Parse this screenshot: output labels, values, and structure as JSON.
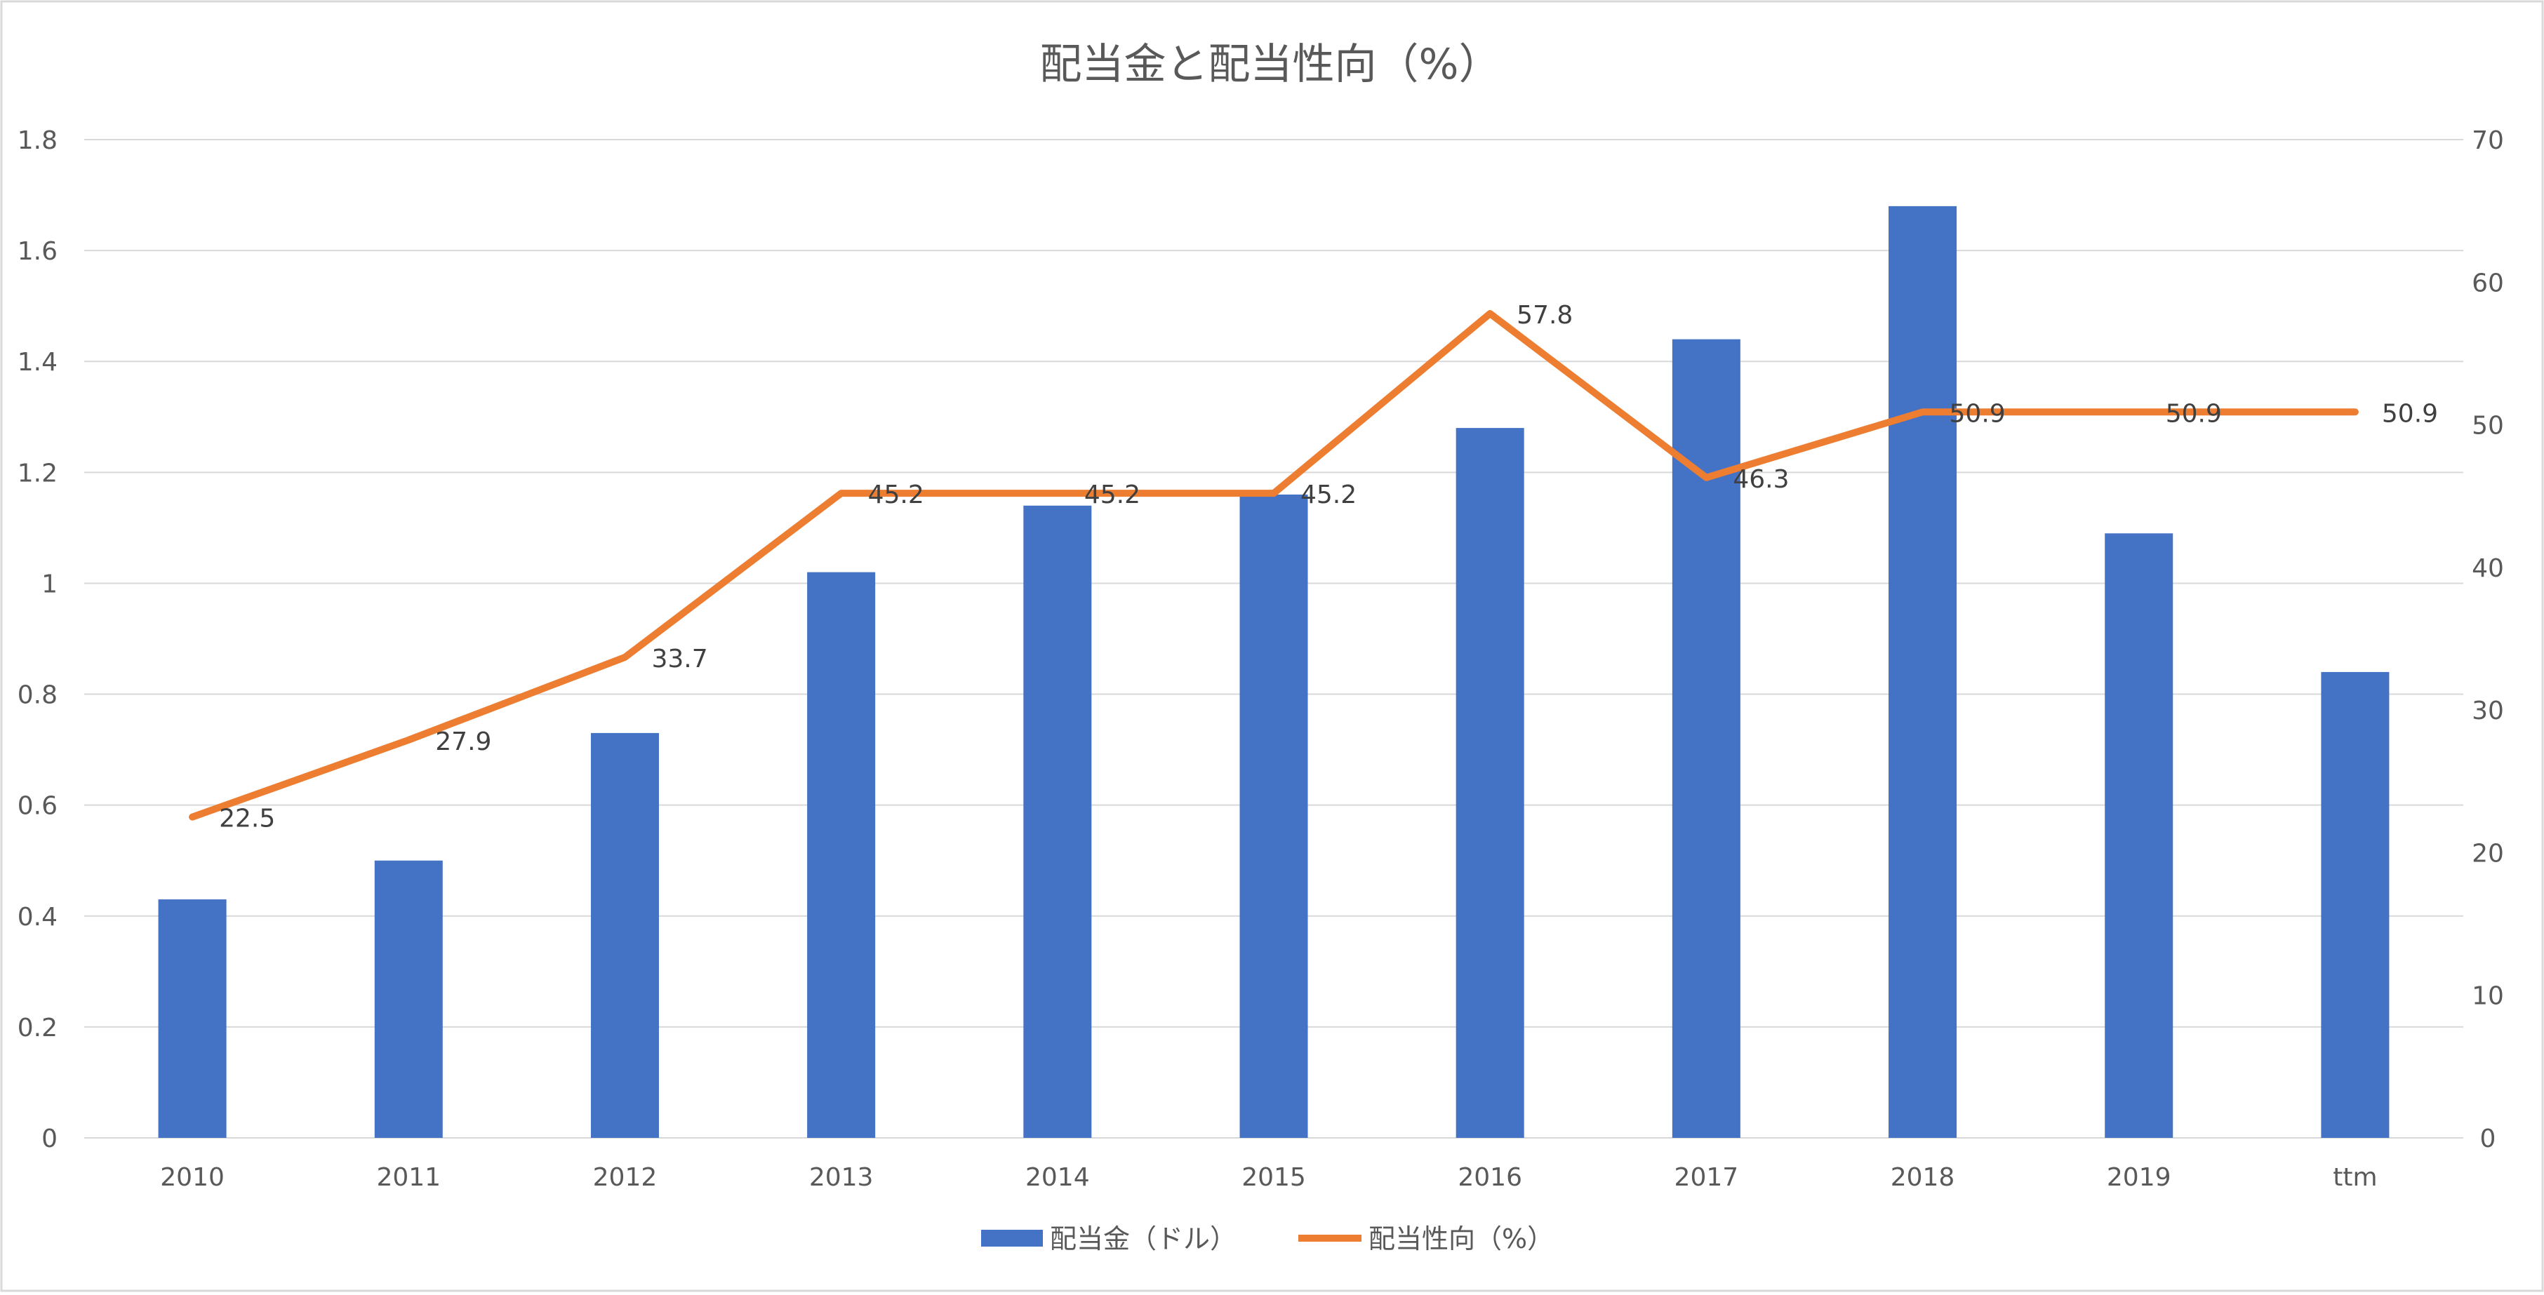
{
  "chart_data": {
    "type": "bar",
    "title": "配当金と配当性向（%）",
    "categories": [
      "2010",
      "2011",
      "2012",
      "2013",
      "2014",
      "2015",
      "2016",
      "2017",
      "2018",
      "2019",
      "ttm"
    ],
    "series": [
      {
        "name": "配当金（ドル）",
        "type": "bar",
        "axis": "left",
        "color": "#4472C4",
        "values": [
          0.43,
          0.5,
          0.73,
          1.02,
          1.14,
          1.16,
          1.28,
          1.44,
          1.68,
          1.09,
          0.84
        ]
      },
      {
        "name": "配当性向（%）",
        "type": "line",
        "axis": "right",
        "color": "#ED7D31",
        "values": [
          22.5,
          27.9,
          33.7,
          45.2,
          45.2,
          45.2,
          57.8,
          46.3,
          50.9,
          50.9,
          50.9
        ],
        "data_labels": [
          "22.5",
          "27.9",
          "33.7",
          "45.2",
          "45.2",
          "45.2",
          "57.8",
          "46.3",
          "50.9",
          "50.9",
          "50.9"
        ]
      }
    ],
    "y_left": {
      "range": [
        0,
        1.8
      ],
      "ticks": [
        "0",
        "0.2",
        "0.4",
        "0.6",
        "0.8",
        "1",
        "1.2",
        "1.4",
        "1.6",
        "1.8"
      ],
      "tick_values": [
        0,
        0.2,
        0.4,
        0.6,
        0.8,
        1.0,
        1.2,
        1.4,
        1.6,
        1.8
      ]
    },
    "y_right": {
      "range": [
        0,
        70
      ],
      "ticks": [
        "0",
        "10",
        "20",
        "30",
        "40",
        "50",
        "60",
        "70"
      ],
      "tick_values": [
        0,
        10,
        20,
        30,
        40,
        50,
        60,
        70
      ]
    },
    "grid": true,
    "legend_position": "bottom",
    "colors": {
      "grid": "#D9D9D9",
      "title": "#595959",
      "tick_text": "#595959",
      "label_text": "#404040",
      "border": "#D9D9D9"
    }
  }
}
